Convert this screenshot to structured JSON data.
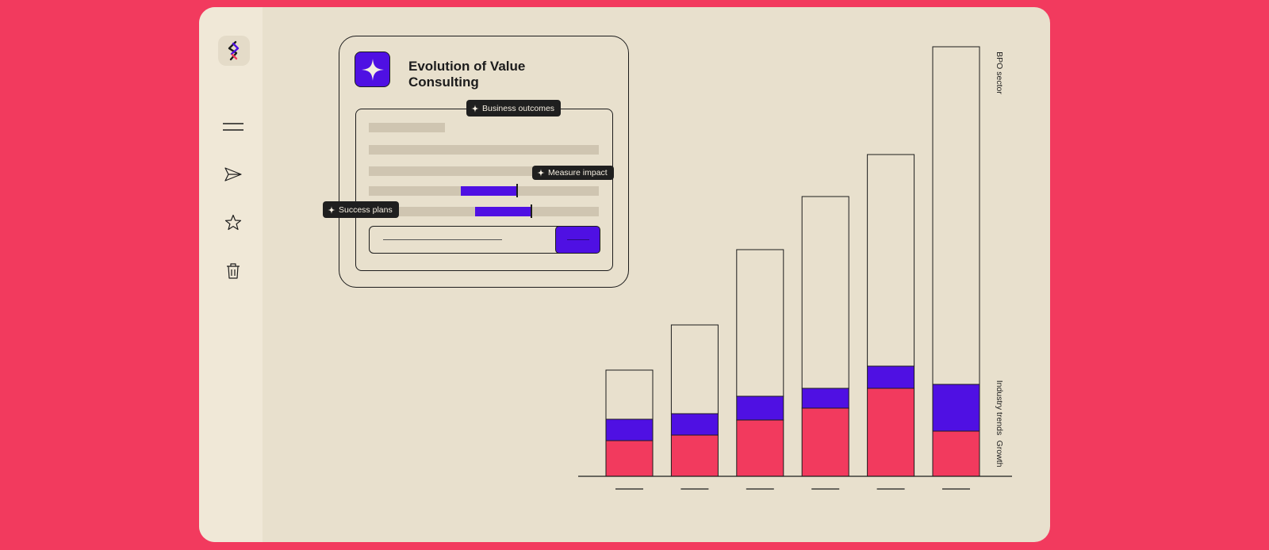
{
  "card": {
    "title": "Evolution of Value Consulting",
    "tags": {
      "business_outcomes": "Business outcomes",
      "measure_impact": "Measure impact",
      "success_plans": "Success plans"
    }
  },
  "sidebar": {
    "icons": [
      "logo-icon",
      "menu-icon",
      "send-icon",
      "star-icon",
      "trash-icon"
    ]
  },
  "colors": {
    "background": "#f23a5e",
    "panel": "#e8e0cd",
    "accent": "#4f10e3",
    "pink": "#f23a5e"
  },
  "chart_data": {
    "type": "bar",
    "stacked": true,
    "categories": [
      "",
      "",
      "",
      "",
      "",
      ""
    ],
    "series": [
      {
        "name": "Growth",
        "values": [
          45,
          52,
          71,
          86,
          111,
          57
        ]
      },
      {
        "name": "Industry trends",
        "values": [
          27,
          27,
          30,
          25,
          28,
          59
        ]
      },
      {
        "name": "BPO sector",
        "values": [
          62,
          112,
          185,
          242,
          267,
          426
        ]
      }
    ],
    "ylim": [
      0,
      545
    ],
    "legend": "right, vertical labels"
  }
}
